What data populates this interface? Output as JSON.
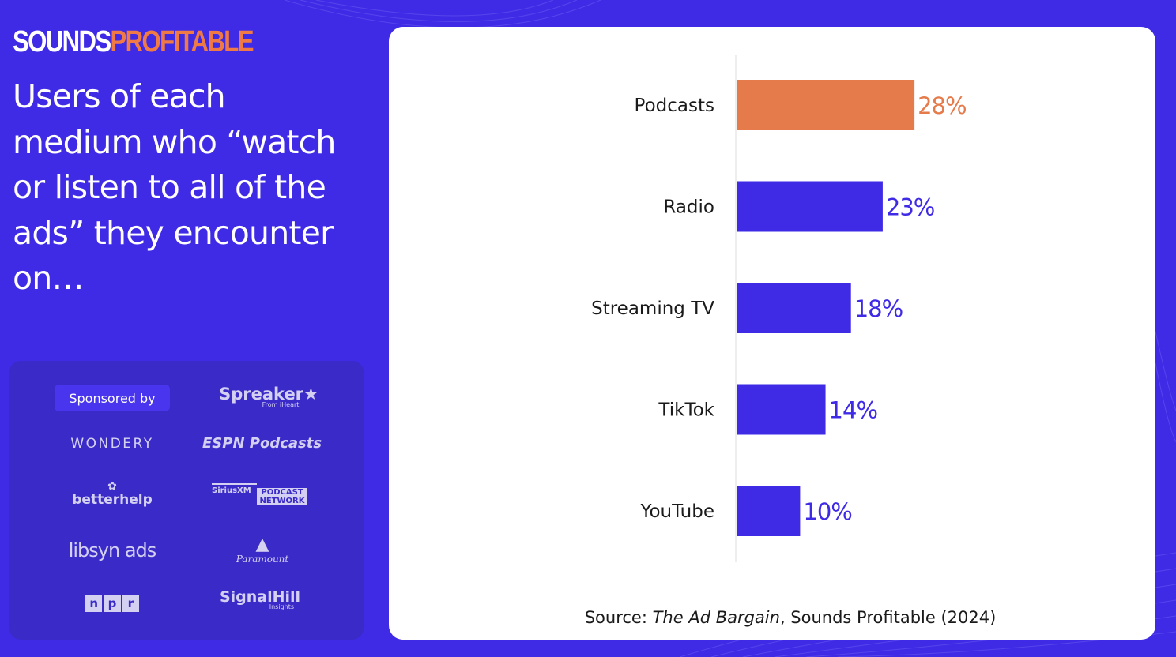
{
  "brand": {
    "part1": "SOUNDS",
    "part2": "PROFITABLE"
  },
  "headline": "Users of each medium who “watch or listen to all of the ads” they encounter on…",
  "sponsors": {
    "label": "Sponsored by",
    "spreaker": "Spreaker★",
    "spreaker_sub": "From iHeart",
    "wondery": "WONDERY",
    "espn": "ESPN Podcasts",
    "betterhelp": "betterhelp",
    "sirius_left": "SiriusXM",
    "sirius_right1": "PODCAST",
    "sirius_right2": "NETWORK",
    "libsyn": "libsyn ads",
    "paramount": "Paramount",
    "npr": [
      "n",
      "p",
      "r"
    ],
    "signalhill": "SignalHill",
    "signalhill_sub": "Insights"
  },
  "colors": {
    "background": "#3f2be6",
    "bar": "#3f2be6",
    "highlight": "#e57a4a",
    "card": "#ffffff"
  },
  "chart_data": {
    "type": "bar",
    "orientation": "horizontal",
    "categories": [
      "Podcasts",
      "Radio",
      "Streaming TV",
      "TikTok",
      "YouTube"
    ],
    "values": [
      28,
      23,
      18,
      14,
      10
    ],
    "labels": [
      "28%",
      "23%",
      "18%",
      "14%",
      "10%"
    ],
    "unit": "%",
    "highlight_category": "Podcasts",
    "xlim": [
      0,
      100
    ],
    "title": "",
    "grid": false
  },
  "source": {
    "prefix": "Source: ",
    "title": "The Ad Bargain",
    "suffix": ", Sounds Profitable (2024)"
  }
}
